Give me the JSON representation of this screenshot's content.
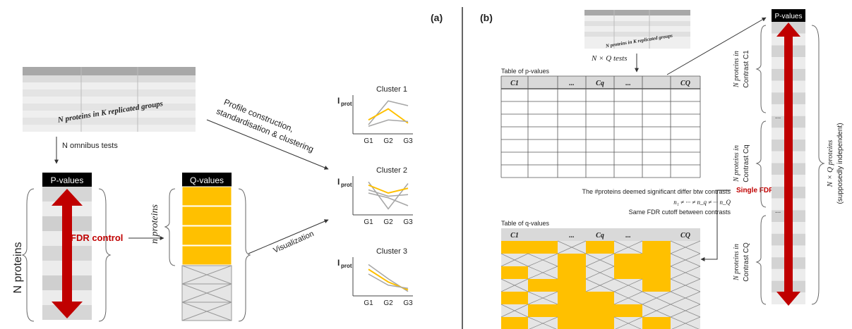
{
  "panel_a": {
    "label": "(a)",
    "input_table_caption": "N proteins in K replicated groups",
    "omnibus_label": "N omnibus tests",
    "pvalues_header": "P-values",
    "fdr_label": "FDR control",
    "n_proteins_label": "N proteins",
    "qvalues_header": "Q-values",
    "small_n_label": "n proteins",
    "profile_label_line1": "Profile construction,",
    "profile_label_line2": "standardisation & clustering",
    "visualization_label": "Visualization",
    "y_axis_label": "I",
    "y_axis_sub": "prot",
    "x_ticks": [
      "G1",
      "G2",
      "G3"
    ],
    "clusters": [
      {
        "title": "Cluster 1",
        "lines": [
          [
            0.2,
            0.95,
            0.8
          ],
          [
            0.35,
            0.7,
            0.25
          ],
          [
            0.15,
            0.35,
            0.3
          ]
        ]
      },
      {
        "title": "Cluster 2",
        "lines": [
          [
            0.95,
            0.1,
            0.9
          ],
          [
            0.85,
            0.6,
            0.75
          ],
          [
            0.7,
            0.5,
            0.55
          ],
          [
            0.6,
            0.45,
            0.2
          ]
        ]
      },
      {
        "title": "Cluster 3",
        "lines": [
          [
            0.9,
            0.45,
            0.05
          ],
          [
            0.75,
            0.35,
            0.1
          ],
          [
            0.6,
            0.25,
            0.15
          ]
        ]
      }
    ]
  },
  "panel_b": {
    "label": "(b)",
    "input_table_caption": "N proteins in K replicated groups",
    "tests_label": "N × Q tests",
    "pvalue_table_title": "Table of p-values",
    "qvalue_table_title": "Table of q-values",
    "table_headers": [
      "C1",
      "",
      "...",
      "Cq",
      "...",
      "",
      "CQ"
    ],
    "significant_line1": "The #proteins deemed significant differ btw contrasts",
    "significant_line2": "n₁ ≠ ··· ≠ n_q ≠ ··· n_Q",
    "significant_line3": "Same FDR cutoff between contrasts",
    "single_fdr_label": "Single FDR control",
    "pvalues_header": "P-values",
    "contrast_labels": [
      [
        "N proteins in",
        "Contrast C1"
      ],
      [
        "N proteins in",
        "Contrast Cq"
      ],
      [
        "N proteins in",
        "Contrast CQ"
      ]
    ],
    "ellipsis": "...",
    "total_label_line1": "N × Q proteins",
    "total_label_line2": "(supposedly independent)",
    "qtable_pattern": [
      [
        1,
        1,
        0,
        1,
        0,
        1,
        0
      ],
      [
        0,
        0,
        1,
        0,
        1,
        1,
        0
      ],
      [
        1,
        0,
        1,
        0,
        1,
        1,
        0
      ],
      [
        0,
        1,
        1,
        0,
        0,
        1,
        0
      ],
      [
        1,
        0,
        1,
        1,
        0,
        0,
        0
      ],
      [
        0,
        1,
        1,
        1,
        1,
        0,
        0
      ],
      [
        1,
        0,
        1,
        1,
        0,
        1,
        0
      ]
    ]
  },
  "colors": {
    "accent_red": "#c00000",
    "yellow": "#ffc000",
    "gray_line": "#a6a6a6",
    "header_black": "#000000"
  }
}
